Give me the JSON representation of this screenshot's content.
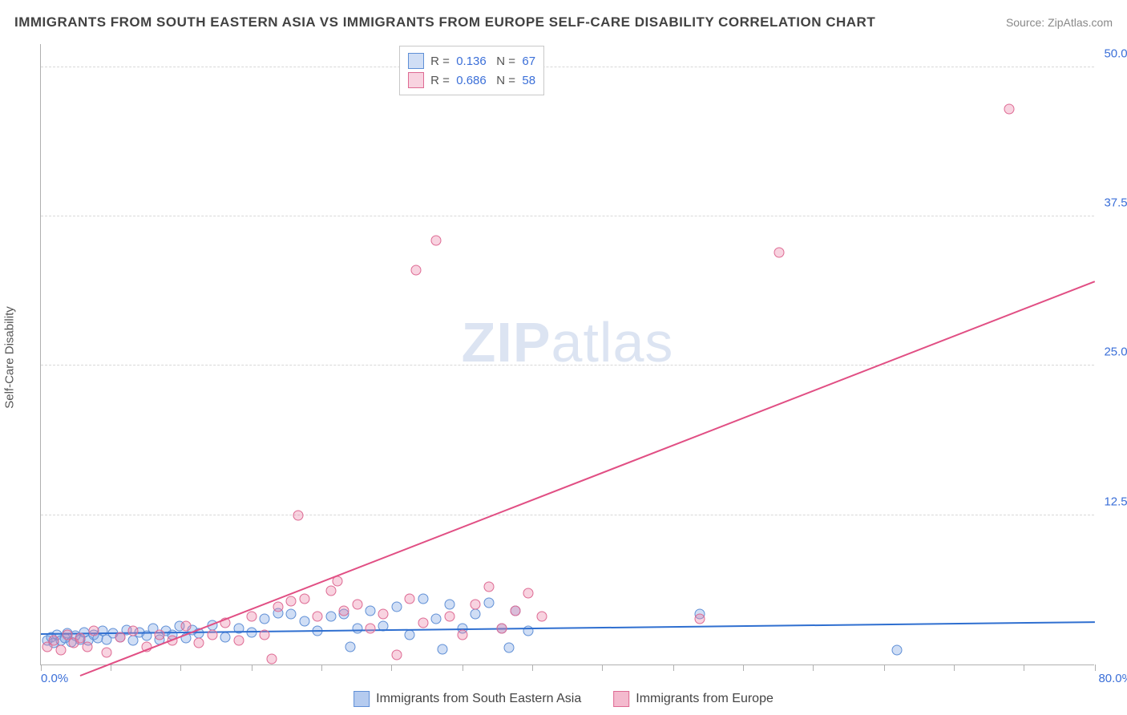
{
  "title": "IMMIGRANTS FROM SOUTH EASTERN ASIA VS IMMIGRANTS FROM EUROPE SELF-CARE DISABILITY CORRELATION CHART",
  "source": "Source: ZipAtlas.com",
  "ylabel": "Self-Care Disability",
  "watermark_zip": "ZIP",
  "watermark_atlas": "atlas",
  "chart": {
    "type": "scatter",
    "xlim": [
      0,
      80
    ],
    "ylim": [
      0,
      52
    ],
    "yticks": [
      12.5,
      25.0,
      37.5,
      50.0
    ],
    "ytick_labels": [
      "12.5%",
      "25.0%",
      "37.5%",
      "50.0%"
    ],
    "xtick_positions": [
      0,
      5.3,
      10.6,
      16,
      21.3,
      26.6,
      32,
      37.3,
      42.6,
      48,
      53.3,
      58.6,
      64,
      69.3,
      74.6,
      80
    ],
    "x_origin_label": "0.0%",
    "x_max_label": "80.0%",
    "background_color": "#ffffff",
    "grid_color": "#d8d8d8",
    "axis_color": "#b0b0b0",
    "series": [
      {
        "name": "Immigrants from South Eastern Asia",
        "fill": "rgba(120,160,225,0.35)",
        "stroke": "#5f8fd6",
        "trend_color": "#2f6fd0",
        "marker_size": 13,
        "R": "0.136",
        "N": "67",
        "trend": {
          "x1": 0,
          "y1": 2.5,
          "x2": 80,
          "y2": 3.5
        },
        "points": [
          [
            0.5,
            2.0
          ],
          [
            0.8,
            2.3
          ],
          [
            1.0,
            1.8
          ],
          [
            1.2,
            2.5
          ],
          [
            1.5,
            2.0
          ],
          [
            1.8,
            2.2
          ],
          [
            2.0,
            2.6
          ],
          [
            2.3,
            1.9
          ],
          [
            2.6,
            2.4
          ],
          [
            3.0,
            2.1
          ],
          [
            3.3,
            2.7
          ],
          [
            3.6,
            2.0
          ],
          [
            4.0,
            2.5
          ],
          [
            4.3,
            2.2
          ],
          [
            4.7,
            2.8
          ],
          [
            5.0,
            2.1
          ],
          [
            5.5,
            2.6
          ],
          [
            6.0,
            2.3
          ],
          [
            6.5,
            2.9
          ],
          [
            7.0,
            2.0
          ],
          [
            7.5,
            2.7
          ],
          [
            8.0,
            2.4
          ],
          [
            8.5,
            3.0
          ],
          [
            9.0,
            2.1
          ],
          [
            9.5,
            2.8
          ],
          [
            10.0,
            2.5
          ],
          [
            10.5,
            3.2
          ],
          [
            11.0,
            2.2
          ],
          [
            11.5,
            2.9
          ],
          [
            12.0,
            2.6
          ],
          [
            13.0,
            3.3
          ],
          [
            14.0,
            2.3
          ],
          [
            15.0,
            3.0
          ],
          [
            16.0,
            2.7
          ],
          [
            17.0,
            3.8
          ],
          [
            18.0,
            4.3
          ],
          [
            19.0,
            4.2
          ],
          [
            20.0,
            3.6
          ],
          [
            21.0,
            2.8
          ],
          [
            22.0,
            4.0
          ],
          [
            23.0,
            4.2
          ],
          [
            23.5,
            1.5
          ],
          [
            24.0,
            3.0
          ],
          [
            25.0,
            4.5
          ],
          [
            26.0,
            3.2
          ],
          [
            27.0,
            4.8
          ],
          [
            28.0,
            2.5
          ],
          [
            29.0,
            5.5
          ],
          [
            30.0,
            3.8
          ],
          [
            30.5,
            1.3
          ],
          [
            31.0,
            5.0
          ],
          [
            32.0,
            3.0
          ],
          [
            33.0,
            4.2
          ],
          [
            34.0,
            5.2
          ],
          [
            35.0,
            3.0
          ],
          [
            35.5,
            1.4
          ],
          [
            36.0,
            4.5
          ],
          [
            37.0,
            2.8
          ],
          [
            50.0,
            4.2
          ],
          [
            65.0,
            1.2
          ]
        ]
      },
      {
        "name": "Immigrants from Europe",
        "fill": "rgba(235,130,165,0.35)",
        "stroke": "#de6a93",
        "trend_color": "#e14f84",
        "marker_size": 13,
        "R": "0.686",
        "N": "58",
        "trend": {
          "x1": 3,
          "y1": -1.0,
          "x2": 80,
          "y2": 32
        },
        "points": [
          [
            0.5,
            1.5
          ],
          [
            1.0,
            2.0
          ],
          [
            1.5,
            1.2
          ],
          [
            2.0,
            2.5
          ],
          [
            2.5,
            1.8
          ],
          [
            3.0,
            2.2
          ],
          [
            3.5,
            1.5
          ],
          [
            4.0,
            2.8
          ],
          [
            5.0,
            1.0
          ],
          [
            6.0,
            2.3
          ],
          [
            7.0,
            2.8
          ],
          [
            8.0,
            1.5
          ],
          [
            9.0,
            2.5
          ],
          [
            10.0,
            2.0
          ],
          [
            11.0,
            3.2
          ],
          [
            12.0,
            1.8
          ],
          [
            13.0,
            2.5
          ],
          [
            14.0,
            3.5
          ],
          [
            15.0,
            2.0
          ],
          [
            16.0,
            4.0
          ],
          [
            17.0,
            2.5
          ],
          [
            17.5,
            0.5
          ],
          [
            18.0,
            4.8
          ],
          [
            19.0,
            5.3
          ],
          [
            19.5,
            12.5
          ],
          [
            20.0,
            5.5
          ],
          [
            21.0,
            4.0
          ],
          [
            22.0,
            6.2
          ],
          [
            22.5,
            7.0
          ],
          [
            23.0,
            4.5
          ],
          [
            24.0,
            5.0
          ],
          [
            25.0,
            3.0
          ],
          [
            26.0,
            4.2
          ],
          [
            27.0,
            0.8
          ],
          [
            28.0,
            5.5
          ],
          [
            28.5,
            33.0
          ],
          [
            29.0,
            3.5
          ],
          [
            30.0,
            35.5
          ],
          [
            31.0,
            4.0
          ],
          [
            32.0,
            2.5
          ],
          [
            33.0,
            5.0
          ],
          [
            34.0,
            6.5
          ],
          [
            35.0,
            3.0
          ],
          [
            36.0,
            4.5
          ],
          [
            37.0,
            6.0
          ],
          [
            38.0,
            4.0
          ],
          [
            50.0,
            3.8
          ],
          [
            56.0,
            34.5
          ],
          [
            73.5,
            46.5
          ]
        ]
      }
    ],
    "legend_top": {
      "R_label": "R  =",
      "N_label": "N  =",
      "value_color": "#3b6fd8",
      "label_color": "#555"
    },
    "legend_bottom": [
      {
        "label": "Immigrants from South Eastern Asia",
        "fill": "rgba(120,160,225,0.55)",
        "stroke": "#5f8fd6"
      },
      {
        "label": "Immigrants from Europe",
        "fill": "rgba(235,130,165,0.55)",
        "stroke": "#de6a93"
      }
    ]
  }
}
